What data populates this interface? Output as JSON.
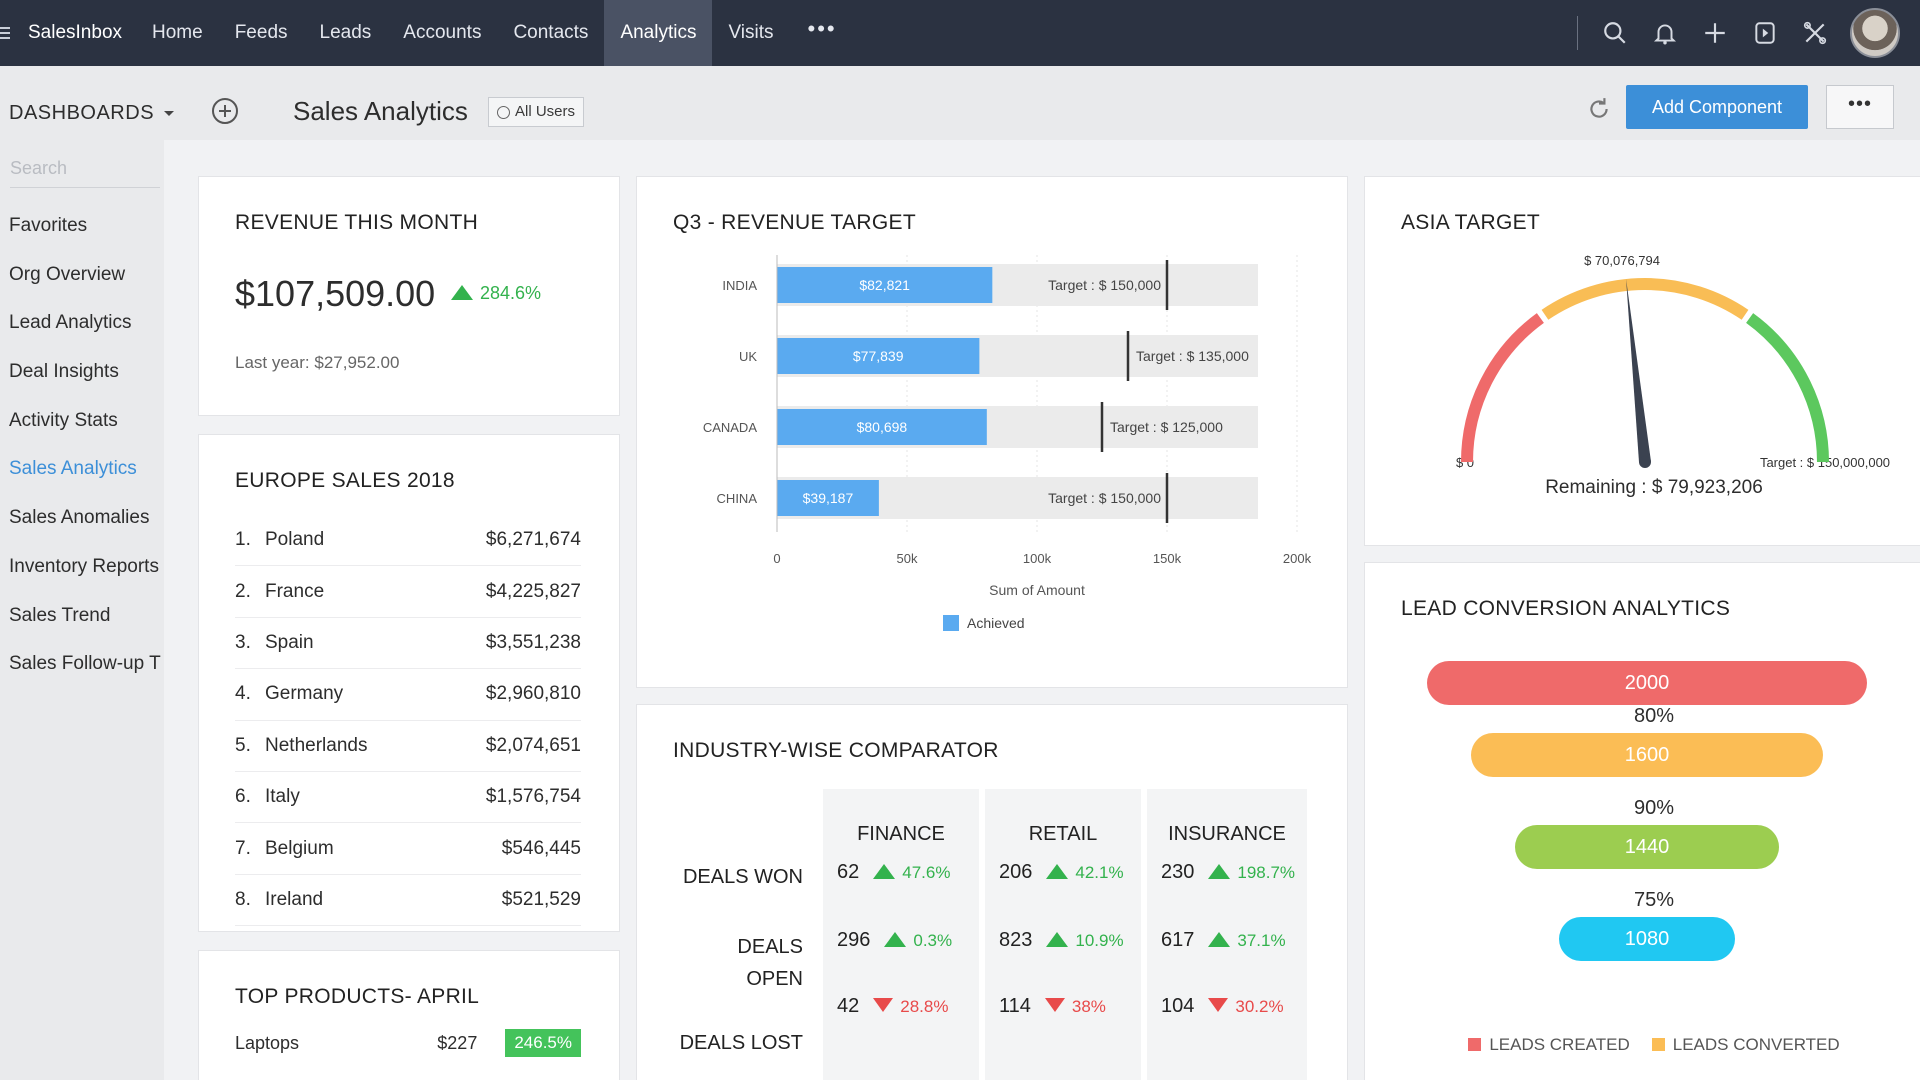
{
  "nav": {
    "brand": "SalesInbox",
    "items": [
      "Home",
      "Feeds",
      "Leads",
      "Accounts",
      "Contacts",
      "Analytics",
      "Visits"
    ],
    "active": "Analytics",
    "more": "•••"
  },
  "subheader": {
    "dashboards_label": "DASHBOARDS",
    "page_title": "Sales Analytics",
    "all_users": "All Users",
    "add_component": "Add Component",
    "more": "•••"
  },
  "sidebar": {
    "search_placeholder": "Search",
    "items": [
      "Favorites",
      "Org Overview",
      "Lead Analytics",
      "Deal Insights",
      "Activity Stats",
      "Sales Analytics",
      "Sales Anomalies",
      "Inventory Reports",
      "Sales Trend",
      "Sales Follow-up T"
    ],
    "active_index": 5
  },
  "revenue": {
    "title": "REVENUE THIS MONTH",
    "value": "$107,509.00",
    "change": "284.6%",
    "last_year": "Last year: $27,952.00"
  },
  "europe": {
    "title": "EUROPE SALES 2018",
    "rows": [
      {
        "rank": "1.",
        "country": "Poland",
        "amount": "$6,271,674"
      },
      {
        "rank": "2.",
        "country": "France",
        "amount": "$4,225,827"
      },
      {
        "rank": "3.",
        "country": "Spain",
        "amount": "$3,551,238"
      },
      {
        "rank": "4.",
        "country": "Germany",
        "amount": "$2,960,810"
      },
      {
        "rank": "5.",
        "country": "Netherlands",
        "amount": "$2,074,651"
      },
      {
        "rank": "6.",
        "country": "Italy",
        "amount": "$1,576,754"
      },
      {
        "rank": "7.",
        "country": "Belgium",
        "amount": "$546,445"
      },
      {
        "rank": "8.",
        "country": "Ireland",
        "amount": "$521,529"
      }
    ]
  },
  "top_products": {
    "title": "TOP PRODUCTS- APRIL",
    "rows": [
      {
        "name": "Laptops",
        "value": "$227",
        "change": "246.5%"
      }
    ]
  },
  "q3": {
    "title": "Q3 - REVENUE TARGET",
    "xlabel": "Sum of Amount",
    "legend": "Achieved",
    "colors": {
      "achieved": "#5aaaf0",
      "track": "#ebebeb",
      "target_line": "#333333"
    }
  },
  "chart_data": {
    "type": "bar",
    "orientation": "horizontal",
    "categories": [
      "INDIA",
      "UK",
      "CANADA",
      "CHINA"
    ],
    "series": [
      {
        "name": "Achieved",
        "values": [
          82821,
          77839,
          80698,
          39187
        ],
        "labels": [
          "$82,821",
          "$77,839",
          "$80,698",
          "$39,187"
        ]
      }
    ],
    "targets": [
      150000,
      135000,
      125000,
      150000
    ],
    "target_labels": [
      "Target : $ 150,000",
      "Target : $ 135,000",
      "Target : $ 125,000",
      "Target : $ 150,000"
    ],
    "xlim": [
      0,
      200000
    ],
    "xticks": [
      0,
      50000,
      100000,
      150000,
      200000
    ],
    "xtick_labels": [
      "0",
      "50k",
      "100k",
      "150k",
      "200k"
    ],
    "xlabel": "Sum of Amount",
    "legend_position": "bottom"
  },
  "industry": {
    "title": "INDUSTRY-WISE COMPARATOR",
    "columns": [
      "FINANCE",
      "RETAIL",
      "INSURANCE"
    ],
    "rows": [
      {
        "label": "DEALS WON",
        "cells": [
          {
            "value": "62",
            "change": "47.6%",
            "dir": "up"
          },
          {
            "value": "206",
            "change": "42.1%",
            "dir": "up"
          },
          {
            "value": "230",
            "change": "198.7%",
            "dir": "up"
          }
        ]
      },
      {
        "label": "DEALS OPEN",
        "cells": [
          {
            "value": "296",
            "change": "0.3%",
            "dir": "up"
          },
          {
            "value": "823",
            "change": "10.9%",
            "dir": "up"
          },
          {
            "value": "617",
            "change": "37.1%",
            "dir": "up"
          }
        ]
      },
      {
        "label": "DEALS LOST",
        "cells": [
          {
            "value": "42",
            "change": "28.8%",
            "dir": "down"
          },
          {
            "value": "114",
            "change": "38%",
            "dir": "down"
          },
          {
            "value": "104",
            "change": "30.2%",
            "dir": "down"
          }
        ]
      }
    ]
  },
  "asia": {
    "title": "ASIA TARGET",
    "value": 70076794,
    "value_label": "$ 70,076,794",
    "min_label": "$ 0",
    "max_label": "Target : $ 150,000,000",
    "max": 150000000,
    "remaining": "Remaining : $ 79,923,206",
    "colors": {
      "low": "#ef6a6a",
      "mid": "#f9bd55",
      "high": "#5cc85e",
      "needle": "#3b4250"
    }
  },
  "lead_conversion": {
    "title": "LEAD CONVERSION ANALYTICS",
    "stages": [
      {
        "value": "2000",
        "color": "#ef6a6a"
      },
      {
        "value": "1600",
        "color": "#fbbd55"
      },
      {
        "value": "1440",
        "color": "#9ccd50"
      },
      {
        "value": "1080",
        "color": "#20c8f2"
      }
    ],
    "rates": [
      "80%",
      "90%",
      "75%"
    ],
    "legend": [
      {
        "label": "LEADS CREATED",
        "color": "#ef6a6a"
      },
      {
        "label": "LEADS CONVERTED",
        "color": "#fbbd55"
      }
    ]
  }
}
